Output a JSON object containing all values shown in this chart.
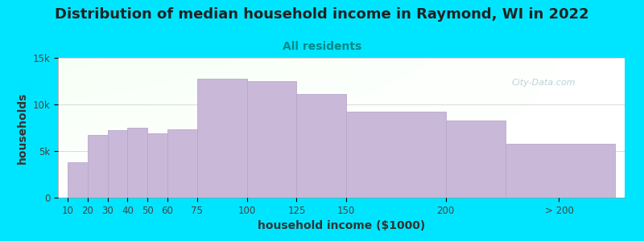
{
  "title": "Distribution of median household income in Raymond, WI in 2022",
  "subtitle": "All residents",
  "xlabel": "household income ($1000)",
  "ylabel": "households",
  "bar_labels": [
    "10",
    "20",
    "30",
    "40",
    "50",
    "60",
    "75",
    "100",
    "125",
    "150",
    "200",
    "> 200"
  ],
  "bar_values": [
    3800,
    6700,
    7200,
    7500,
    6900,
    7300,
    12800,
    12500,
    11100,
    9200,
    8300,
    5800
  ],
  "bar_color": "#c9b8d8",
  "bar_edge_color": "#b8a8cc",
  "background_color": "#00e5ff",
  "ylim": [
    0,
    15000
  ],
  "yticks": [
    0,
    5000,
    10000,
    15000
  ],
  "ytick_labels": [
    "0",
    "5k",
    "10k",
    "15k"
  ],
  "title_fontsize": 13,
  "subtitle_fontsize": 10,
  "axis_label_fontsize": 10,
  "watermark_text": "City-Data.com",
  "watermark_color": "#aec8d0",
  "title_color": "#222222",
  "subtitle_color": "#008888",
  "axis_label_color": "#333333",
  "x_positions": [
    10,
    20,
    30,
    40,
    50,
    60,
    75,
    100,
    125,
    150,
    200,
    230
  ],
  "bar_widths": [
    10,
    10,
    10,
    10,
    10,
    15,
    25,
    25,
    25,
    50,
    30,
    55
  ],
  "xtick_positions": [
    10,
    20,
    30,
    40,
    50,
    60,
    75,
    100,
    125,
    150,
    200,
    257
  ],
  "xlim": [
    5,
    290
  ]
}
